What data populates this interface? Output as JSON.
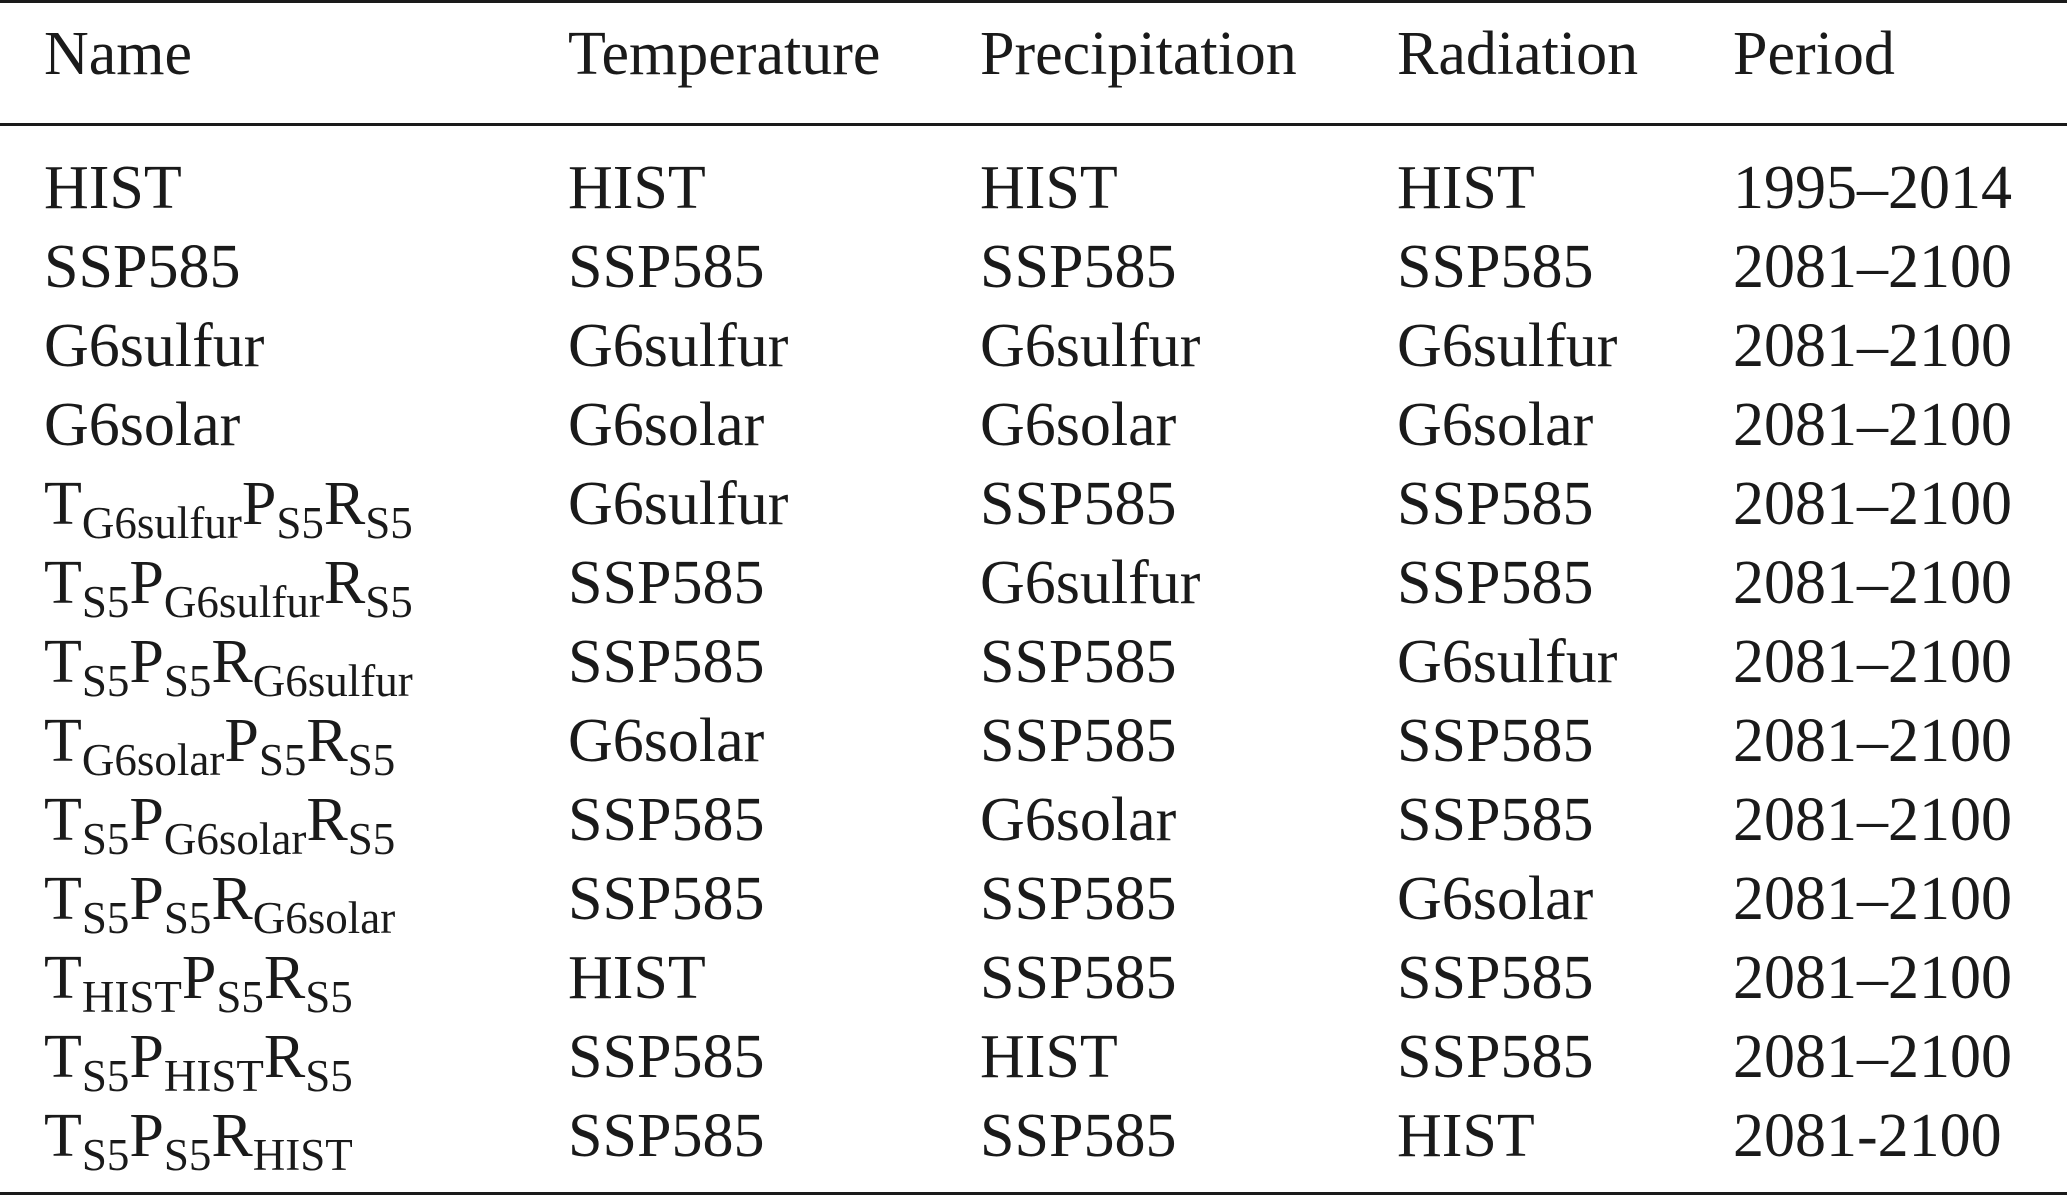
{
  "table": {
    "headers": [
      "Name",
      "Temperature",
      "Precipitation",
      "Radiation",
      "Period"
    ],
    "rows": [
      {
        "name": {
          "parts": [
            {
              "t": "HIST",
              "s": ""
            }
          ]
        },
        "temperature": "HIST",
        "precipitation": "HIST",
        "radiation": "HIST",
        "period": "1995–2014"
      },
      {
        "name": {
          "parts": [
            {
              "t": "SSP585",
              "s": ""
            }
          ]
        },
        "temperature": "SSP585",
        "precipitation": "SSP585",
        "radiation": "SSP585",
        "period": "2081–2100"
      },
      {
        "name": {
          "parts": [
            {
              "t": "G6sulfur",
              "s": ""
            }
          ]
        },
        "temperature": "G6sulfur",
        "precipitation": "G6sulfur",
        "radiation": "G6sulfur",
        "period": "2081–2100"
      },
      {
        "name": {
          "parts": [
            {
              "t": "G6solar",
              "s": ""
            }
          ]
        },
        "temperature": "G6solar",
        "precipitation": "G6solar",
        "radiation": "G6solar",
        "period": "2081–2100"
      },
      {
        "name": {
          "parts": [
            {
              "t": "T",
              "s": "G6sulfur"
            },
            {
              "t": "P",
              "s": "S5"
            },
            {
              "t": "R",
              "s": "S5"
            }
          ]
        },
        "temperature": "G6sulfur",
        "precipitation": "SSP585",
        "radiation": "SSP585",
        "period": "2081–2100"
      },
      {
        "name": {
          "parts": [
            {
              "t": "T",
              "s": "S5"
            },
            {
              "t": "P",
              "s": "G6sulfur"
            },
            {
              "t": "R",
              "s": "S5"
            }
          ]
        },
        "temperature": "SSP585",
        "precipitation": "G6sulfur",
        "radiation": "SSP585",
        "period": "2081–2100"
      },
      {
        "name": {
          "parts": [
            {
              "t": "T",
              "s": "S5"
            },
            {
              "t": "P",
              "s": "S5"
            },
            {
              "t": "R",
              "s": "G6sulfur"
            }
          ]
        },
        "temperature": "SSP585",
        "precipitation": "SSP585",
        "radiation": "G6sulfur",
        "period": "2081–2100"
      },
      {
        "name": {
          "parts": [
            {
              "t": "T",
              "s": "G6solar"
            },
            {
              "t": "P",
              "s": "S5"
            },
            {
              "t": "R",
              "s": "S5"
            }
          ]
        },
        "temperature": "G6solar",
        "precipitation": "SSP585",
        "radiation": "SSP585",
        "period": "2081–2100"
      },
      {
        "name": {
          "parts": [
            {
              "t": "T",
              "s": "S5"
            },
            {
              "t": "P",
              "s": "G6solar"
            },
            {
              "t": "R",
              "s": "S5"
            }
          ]
        },
        "temperature": "SSP585",
        "precipitation": "G6solar",
        "radiation": "SSP585",
        "period": "2081–2100"
      },
      {
        "name": {
          "parts": [
            {
              "t": "T",
              "s": "S5"
            },
            {
              "t": "P",
              "s": "S5"
            },
            {
              "t": "R",
              "s": "G6solar"
            }
          ]
        },
        "temperature": "SSP585",
        "precipitation": "SSP585",
        "radiation": "G6solar",
        "period": "2081–2100"
      },
      {
        "name": {
          "parts": [
            {
              "t": "T",
              "s": "HIST"
            },
            {
              "t": "P",
              "s": "S5"
            },
            {
              "t": "R",
              "s": "S5"
            }
          ]
        },
        "temperature": "HIST",
        "precipitation": "SSP585",
        "radiation": "SSP585",
        "period": "2081–2100"
      },
      {
        "name": {
          "parts": [
            {
              "t": "T",
              "s": "S5"
            },
            {
              "t": "P",
              "s": "HIST"
            },
            {
              "t": "R",
              "s": "S5"
            }
          ]
        },
        "temperature": "SSP585",
        "precipitation": "HIST",
        "radiation": "SSP585",
        "period": "2081–2100"
      },
      {
        "name": {
          "parts": [
            {
              "t": "T",
              "s": "S5"
            },
            {
              "t": "P",
              "s": "S5"
            },
            {
              "t": "R",
              "s": "HIST"
            }
          ]
        },
        "temperature": "SSP585",
        "precipitation": "SSP585",
        "radiation": "HIST",
        "period": "2081-2100"
      }
    ]
  }
}
